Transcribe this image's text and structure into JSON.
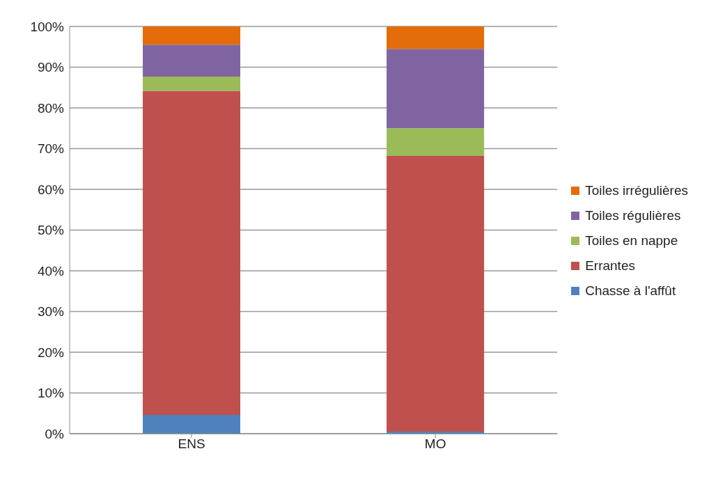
{
  "chart_data": {
    "type": "bar",
    "stacked": true,
    "categories": [
      "ENS",
      "MO"
    ],
    "series": [
      {
        "name": "Chasse à l'affût",
        "color": "#4f81bd",
        "values": [
          4.6,
          0.5
        ]
      },
      {
        "name": "Errantes",
        "color": "#c0504d",
        "values": [
          79.6,
          67.7
        ]
      },
      {
        "name": "Toiles en nappe",
        "color": "#9bbb59",
        "values": [
          3.5,
          6.8
        ]
      },
      {
        "name": "Toiles régulières",
        "color": "#8064a2",
        "values": [
          7.8,
          19.5
        ]
      },
      {
        "name": "Toiles irrégulières",
        "color": "#e46c0a",
        "values": [
          4.5,
          5.5
        ]
      }
    ],
    "ylim": [
      0,
      100
    ],
    "yticks": [
      {
        "value": 0,
        "label": "0%"
      },
      {
        "value": 10,
        "label": "10%"
      },
      {
        "value": 20,
        "label": "20%"
      },
      {
        "value": 30,
        "label": "30%"
      },
      {
        "value": 40,
        "label": "40%"
      },
      {
        "value": 50,
        "label": "50%"
      },
      {
        "value": 60,
        "label": "60%"
      },
      {
        "value": 70,
        "label": "70%"
      },
      {
        "value": 80,
        "label": "80%"
      },
      {
        "value": 90,
        "label": "90%"
      },
      {
        "value": 100,
        "label": "100%"
      }
    ],
    "grid": "y",
    "legend": "right"
  }
}
